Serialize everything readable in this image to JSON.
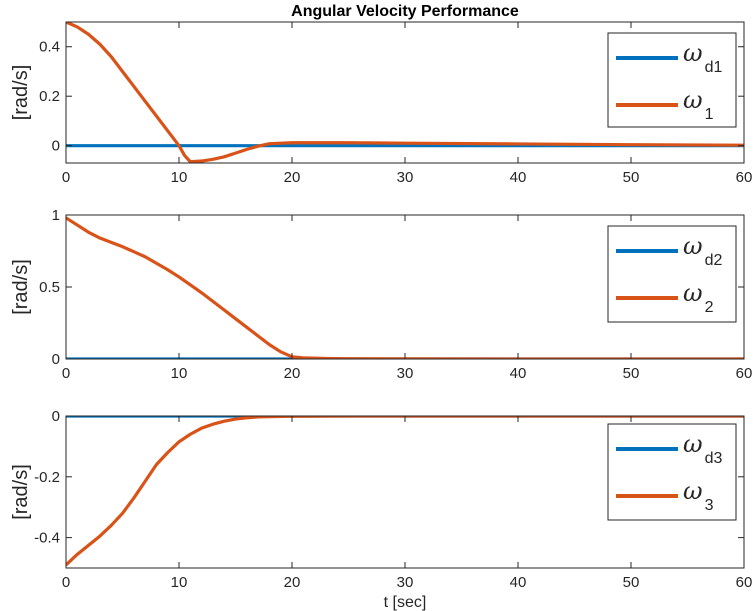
{
  "chart_data": [
    {
      "type": "line",
      "title": "Angular Velocity Performance",
      "xlabel": "",
      "ylabel": "[rad/s]",
      "xlim": [
        0,
        60
      ],
      "ylim": [
        -0.07,
        0.5
      ],
      "xticks": [
        0,
        10,
        20,
        30,
        40,
        50,
        60
      ],
      "yticks": [
        0,
        0.2,
        0.4
      ],
      "ytick_labels": [
        "0",
        "0.2",
        "0.4"
      ],
      "legend_position": "top-right",
      "series": [
        {
          "name": "ω",
          "sub": "d1",
          "color": "#0072BD",
          "x": [
            0,
            60
          ],
          "y": [
            0,
            0
          ]
        },
        {
          "name": "ω",
          "sub": "1",
          "color": "#D95319",
          "x": [
            0,
            1,
            2,
            3,
            4,
            5,
            6,
            7,
            8,
            9,
            10,
            10.5,
            11,
            12,
            13,
            14,
            15,
            16,
            17,
            18,
            20,
            25,
            30,
            40,
            50,
            60
          ],
          "y": [
            0.5,
            0.48,
            0.45,
            0.41,
            0.36,
            0.3,
            0.24,
            0.18,
            0.12,
            0.06,
            0.0,
            -0.04,
            -0.065,
            -0.062,
            -0.055,
            -0.045,
            -0.03,
            -0.015,
            -0.002,
            0.008,
            0.012,
            0.012,
            0.01,
            0.007,
            0.004,
            0.002
          ]
        }
      ]
    },
    {
      "type": "line",
      "title": "",
      "xlabel": "",
      "ylabel": "[rad/s]",
      "xlim": [
        0,
        60
      ],
      "ylim": [
        0,
        1
      ],
      "xticks": [
        0,
        10,
        20,
        30,
        40,
        50,
        60
      ],
      "yticks": [
        0,
        0.5,
        1
      ],
      "ytick_labels": [
        "0",
        "0.5",
        "1"
      ],
      "legend_position": "top-right",
      "series": [
        {
          "name": "ω",
          "sub": "d2",
          "color": "#0072BD",
          "x": [
            0,
            60
          ],
          "y": [
            0,
            0
          ]
        },
        {
          "name": "ω",
          "sub": "2",
          "color": "#D95319",
          "x": [
            0,
            1,
            2,
            3,
            4,
            5,
            6,
            7,
            8,
            9,
            10,
            11,
            12,
            13,
            14,
            15,
            16,
            17,
            18,
            19,
            20,
            21,
            23,
            25,
            30,
            40,
            50,
            60
          ],
          "y": [
            0.98,
            0.93,
            0.88,
            0.84,
            0.81,
            0.78,
            0.745,
            0.71,
            0.665,
            0.62,
            0.57,
            0.515,
            0.46,
            0.4,
            0.34,
            0.28,
            0.22,
            0.16,
            0.1,
            0.05,
            0.015,
            0.008,
            0.004,
            0.002,
            0.001,
            0.0,
            0.0,
            0.0
          ]
        }
      ]
    },
    {
      "type": "line",
      "title": "",
      "xlabel": "t [sec]",
      "ylabel": "[rad/s]",
      "xlim": [
        0,
        60
      ],
      "ylim": [
        -0.5,
        0
      ],
      "xticks": [
        0,
        10,
        20,
        30,
        40,
        50,
        60
      ],
      "yticks": [
        -0.4,
        -0.2,
        0
      ],
      "ytick_labels": [
        "-0.4",
        "-0.2",
        "0"
      ],
      "legend_position": "right",
      "series": [
        {
          "name": "ω",
          "sub": "d3",
          "color": "#0072BD",
          "x": [
            0,
            60
          ],
          "y": [
            0,
            0
          ]
        },
        {
          "name": "ω",
          "sub": "3",
          "color": "#D95319",
          "x": [
            0,
            1,
            2,
            3,
            4,
            5,
            6,
            7,
            8,
            9,
            10,
            11,
            12,
            13,
            14,
            15,
            16,
            17,
            18,
            20,
            25,
            30,
            60
          ],
          "y": [
            -0.49,
            -0.455,
            -0.425,
            -0.395,
            -0.36,
            -0.32,
            -0.27,
            -0.215,
            -0.16,
            -0.12,
            -0.085,
            -0.06,
            -0.04,
            -0.027,
            -0.017,
            -0.01,
            -0.006,
            -0.003,
            -0.002,
            -0.001,
            0.0,
            0.0,
            0.0
          ]
        }
      ]
    }
  ]
}
